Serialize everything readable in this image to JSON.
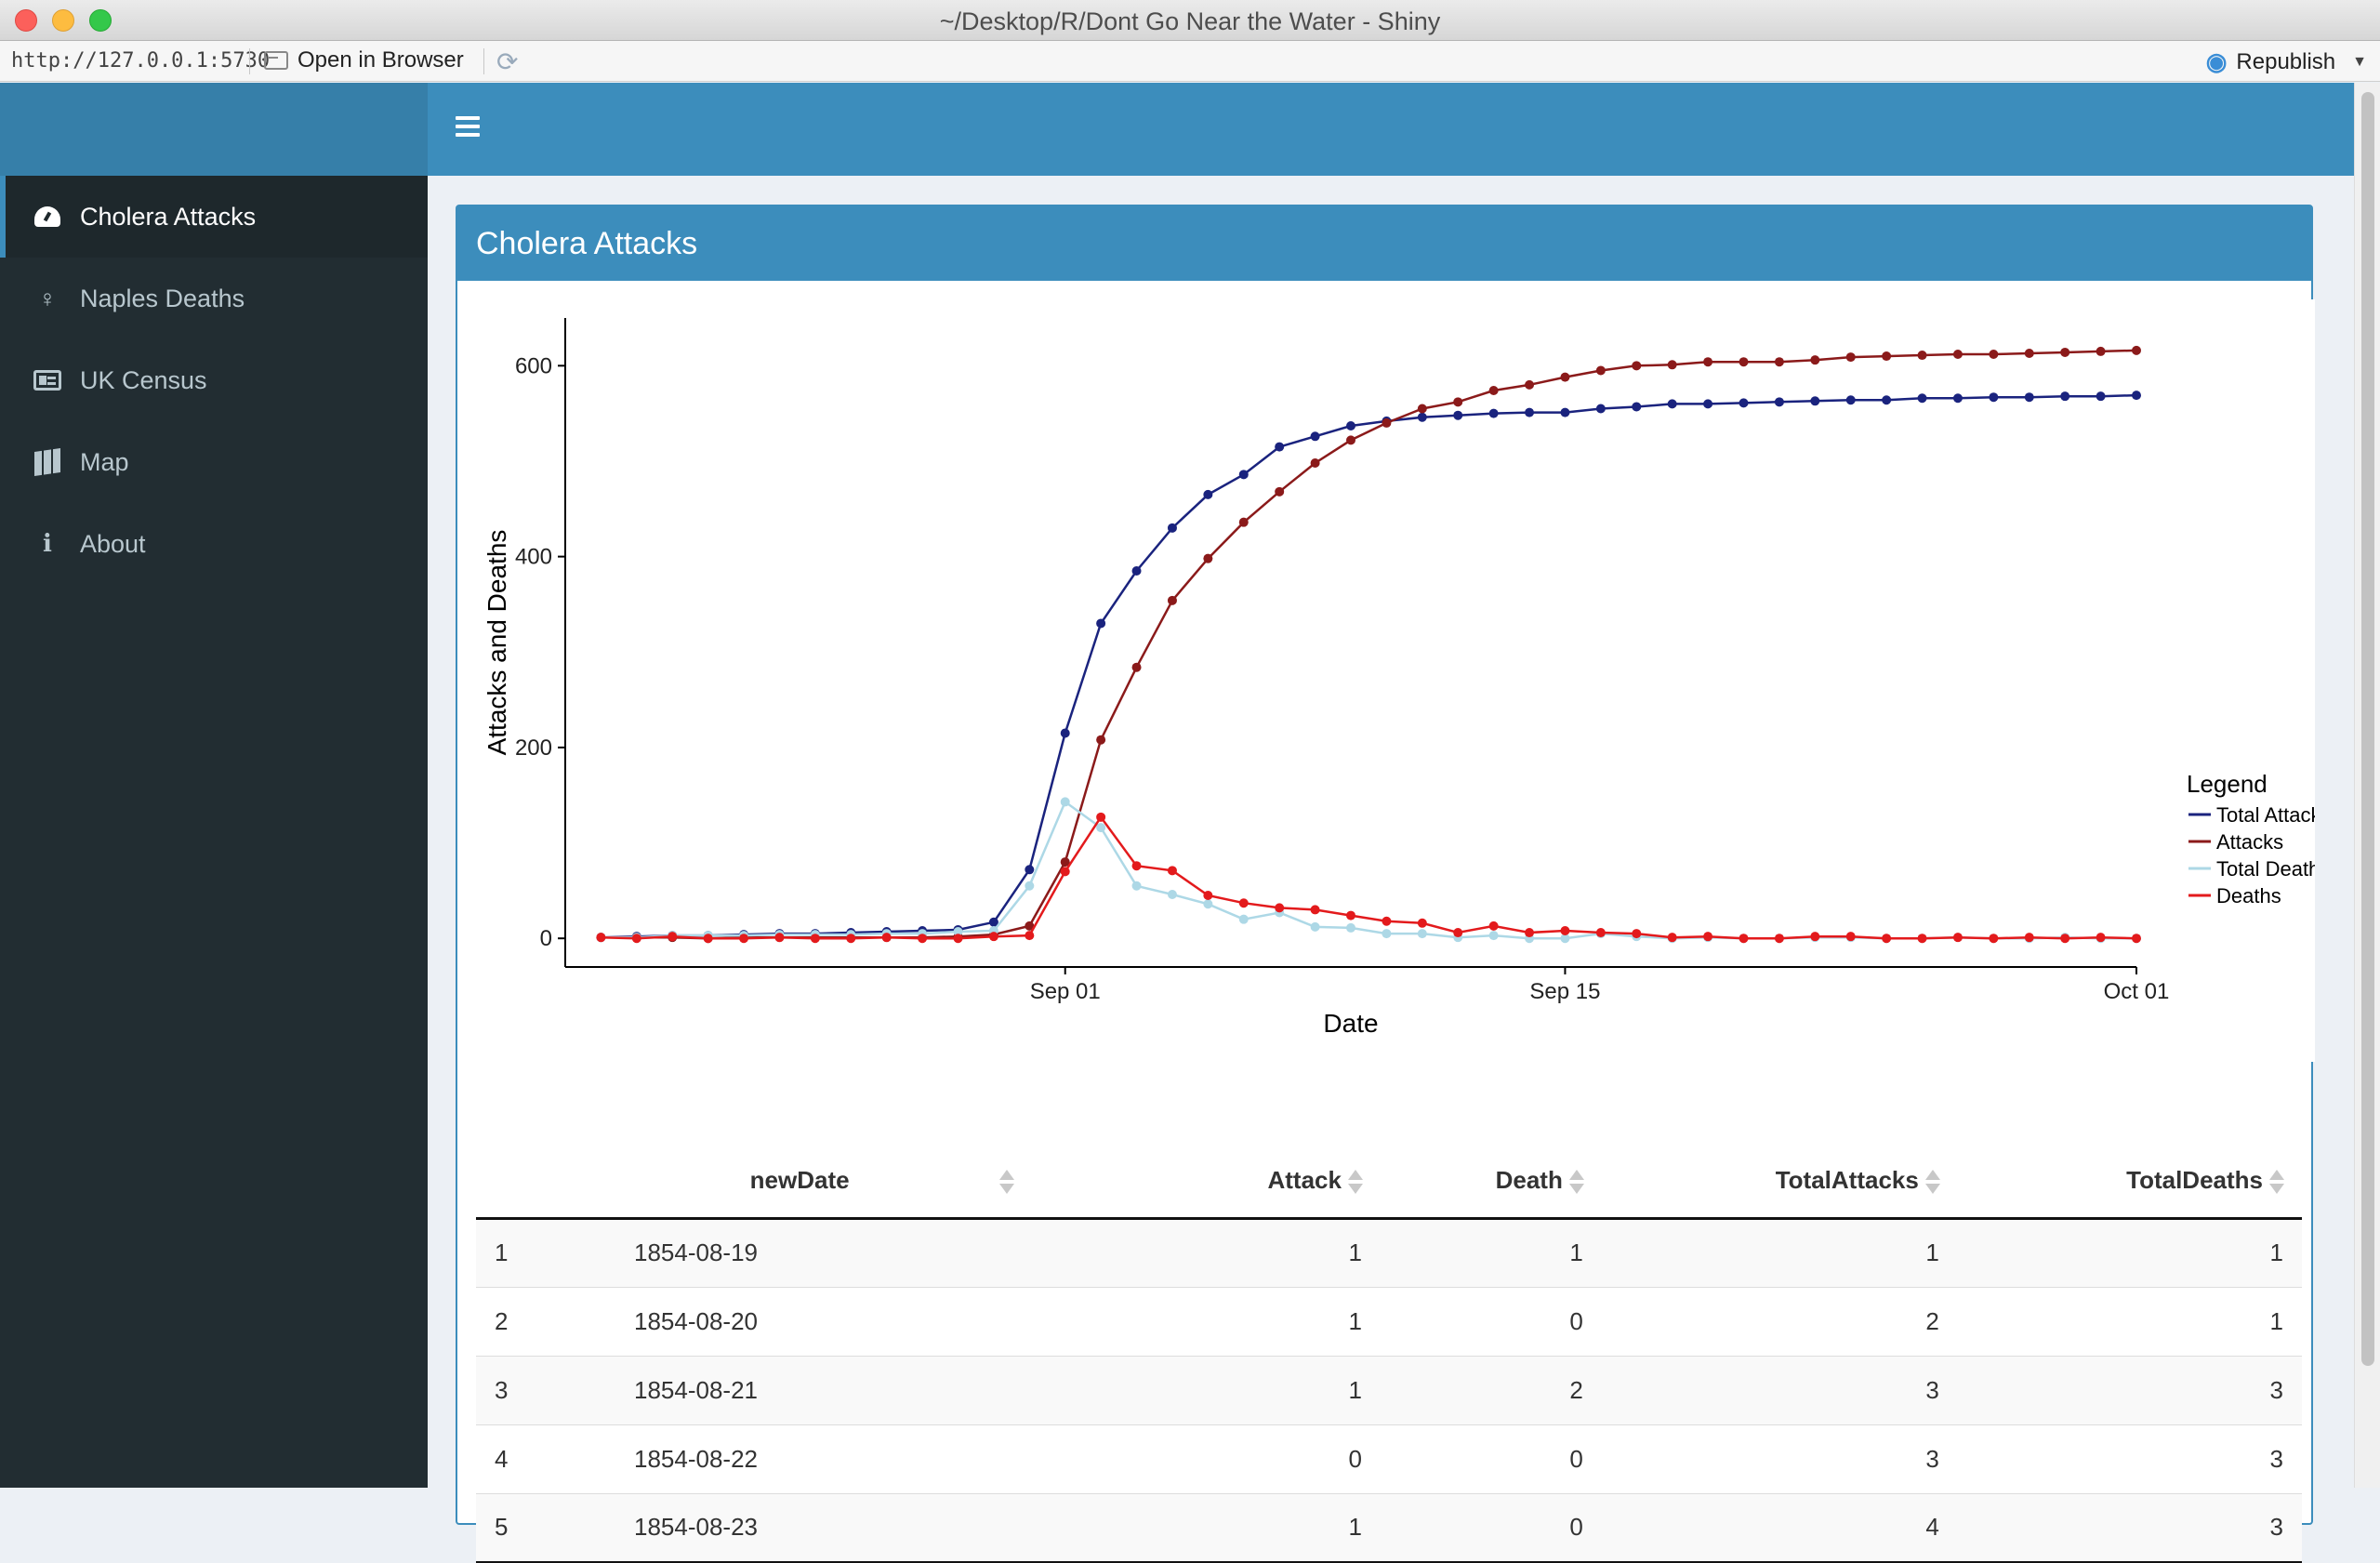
{
  "window": {
    "title": "~/Desktop/R/Dont Go Near the Water - Shiny",
    "url": "http://127.0.0.1:5730",
    "open_in_browser": "Open in Browser",
    "republish": "Republish"
  },
  "sidebar": {
    "items": [
      {
        "label": "Cholera Attacks",
        "icon": "dashboard-icon",
        "active": true
      },
      {
        "label": "Naples Deaths",
        "icon": "female-icon",
        "active": false
      },
      {
        "label": "UK Census",
        "icon": "id-card-icon",
        "active": false
      },
      {
        "label": "Map",
        "icon": "map-icon",
        "active": false
      },
      {
        "label": "About",
        "icon": "info-icon",
        "active": false
      }
    ]
  },
  "box": {
    "title": "Cholera Attacks"
  },
  "chart_data": {
    "type": "line",
    "xlabel": "Date",
    "ylabel": "Attacks and Deaths",
    "x_start": "1854-08-19",
    "x_ticks": [
      "Sep 01",
      "Sep 15",
      "Oct 01"
    ],
    "y_ticks": [
      0,
      200,
      400,
      600
    ],
    "ylim": [
      -30,
      650
    ],
    "legend_title": "Legend",
    "legend_position": "right",
    "series": [
      {
        "name": "Total Attacks",
        "color": "#1a237e",
        "values": [
          1,
          2,
          3,
          3,
          4,
          5,
          5,
          6,
          7,
          8,
          9,
          17,
          72,
          215,
          330,
          385,
          430,
          465,
          486,
          515,
          526,
          537,
          542,
          546,
          548,
          550,
          551,
          551,
          555,
          557,
          560,
          560,
          561,
          562,
          563,
          564,
          564,
          566,
          566,
          567,
          567,
          568,
          568,
          569
        ]
      },
      {
        "name": "Attacks",
        "color": "#8b1a1a",
        "values": [
          1,
          1,
          1,
          0,
          1,
          1,
          1,
          1,
          1,
          1,
          2,
          4,
          13,
          80,
          208,
          284,
          354,
          398,
          436,
          468,
          498,
          522,
          540,
          555,
          562,
          574,
          580,
          588,
          595,
          600,
          601,
          604,
          604,
          604,
          606,
          609,
          610,
          611,
          612,
          612,
          613,
          614,
          615,
          616
        ]
      },
      {
        "name": "Total Deaths",
        "color": "#add8e6",
        "values": [
          1,
          1,
          3,
          3,
          3,
          4,
          4,
          4,
          5,
          5,
          7,
          8,
          55,
          143,
          116,
          55,
          46,
          36,
          20,
          27,
          12,
          11,
          5,
          5,
          1,
          3,
          0,
          0,
          5,
          2,
          0,
          1,
          0,
          0,
          1,
          1,
          0,
          0,
          1,
          0,
          0,
          1,
          0,
          0
        ]
      },
      {
        "name": "Deaths",
        "color": "#e31a1c",
        "values": [
          1,
          0,
          2,
          0,
          0,
          1,
          0,
          0,
          1,
          0,
          0,
          2,
          3,
          70,
          127,
          76,
          71,
          45,
          37,
          32,
          30,
          24,
          18,
          16,
          6,
          13,
          6,
          8,
          6,
          5,
          1,
          2,
          0,
          0,
          2,
          2,
          0,
          0,
          1,
          0,
          1,
          0,
          1,
          0
        ]
      }
    ]
  },
  "table": {
    "columns": [
      "newDate",
      "Attack",
      "Death",
      "TotalAttacks",
      "TotalDeaths"
    ],
    "rows": [
      {
        "id": "1",
        "newDate": "1854-08-19",
        "Attack": "1",
        "Death": "1",
        "TotalAttacks": "1",
        "TotalDeaths": "1"
      },
      {
        "id": "2",
        "newDate": "1854-08-20",
        "Attack": "1",
        "Death": "0",
        "TotalAttacks": "2",
        "TotalDeaths": "1"
      },
      {
        "id": "3",
        "newDate": "1854-08-21",
        "Attack": "1",
        "Death": "2",
        "TotalAttacks": "3",
        "TotalDeaths": "3"
      },
      {
        "id": "4",
        "newDate": "1854-08-22",
        "Attack": "0",
        "Death": "0",
        "TotalAttacks": "3",
        "TotalDeaths": "3"
      },
      {
        "id": "5",
        "newDate": "1854-08-23",
        "Attack": "1",
        "Death": "0",
        "TotalAttacks": "4",
        "TotalDeaths": "3"
      }
    ]
  }
}
